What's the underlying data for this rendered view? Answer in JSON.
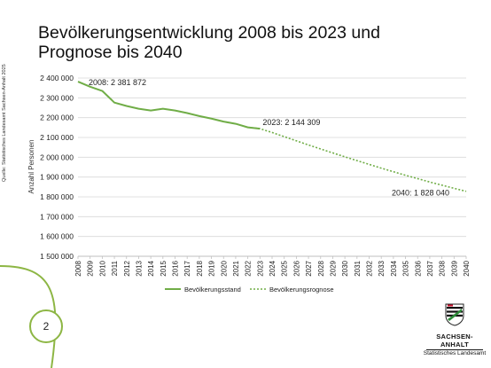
{
  "title": "Bevölkerungsentwicklung 2008 bis 2023 und Prognose bis 2040",
  "source": "Quelle: Statistisches Landesamt Sachsen-Anhalt 2025",
  "page_number": "2",
  "logo": {
    "state": "SACHSEN-ANHALT",
    "office": "Statistisches Landesamt"
  },
  "colors": {
    "series": "#70ad47",
    "deco_line": "#8db644",
    "grid": "#d9d9d9"
  },
  "chart_data": {
    "type": "line",
    "ylabel": "Anzahl Personen",
    "ylim": [
      1500000,
      2400000
    ],
    "y_ticks": [
      "1 500 000",
      "1 600 000",
      "1 700 000",
      "1 800 000",
      "1 900 000",
      "2 000 000",
      "2 100 000",
      "2 200 000",
      "2 300 000",
      "2 400 000"
    ],
    "x_ticks": [
      "2008",
      "2009",
      "2010",
      "2011",
      "2012",
      "2013",
      "2014",
      "2015",
      "2016",
      "2017",
      "2018",
      "2019",
      "2020",
      "2021",
      "2022",
      "2023",
      "2024",
      "2025",
      "2026",
      "2027",
      "2028",
      "2029",
      "2030",
      "2031",
      "2032",
      "2033",
      "2034",
      "2035",
      "2036",
      "2037",
      "2038",
      "2039",
      "2040"
    ],
    "grid": true,
    "legend_position": "bottom",
    "series": [
      {
        "name": "Bevölkerungsstand",
        "style": "solid",
        "x": [
          2008,
          2009,
          2010,
          2011,
          2012,
          2013,
          2014,
          2015,
          2016,
          2017,
          2018,
          2019,
          2020,
          2021,
          2022,
          2023
        ],
        "values": [
          2381872,
          2356000,
          2335000,
          2276000,
          2259000,
          2245000,
          2236000,
          2245000,
          2236000,
          2223000,
          2208000,
          2195000,
          2180000,
          2169000,
          2151000,
          2144309
        ]
      },
      {
        "name": "Bevölkerungsrognose",
        "style": "dotted",
        "x": [
          2022,
          2023,
          2024,
          2025,
          2026,
          2027,
          2028,
          2029,
          2030,
          2031,
          2032,
          2033,
          2034,
          2035,
          2036,
          2037,
          2038,
          2039,
          2040
        ],
        "values": [
          2151000,
          2144309,
          2125000,
          2104000,
          2083000,
          2062000,
          2042000,
          2022000,
          2002000,
          1983000,
          1964000,
          1945000,
          1927000,
          1909000,
          1892000,
          1875000,
          1859000,
          1843000,
          1828040
        ]
      }
    ],
    "annotations": [
      {
        "text": "2008: 2 381 872",
        "x": 2008,
        "y": 2381872
      },
      {
        "text": "2023: 2 144 309",
        "x": 2023,
        "y": 2144309
      },
      {
        "text": "2040: 1 828 040",
        "x": 2040,
        "y": 1828040
      }
    ]
  }
}
